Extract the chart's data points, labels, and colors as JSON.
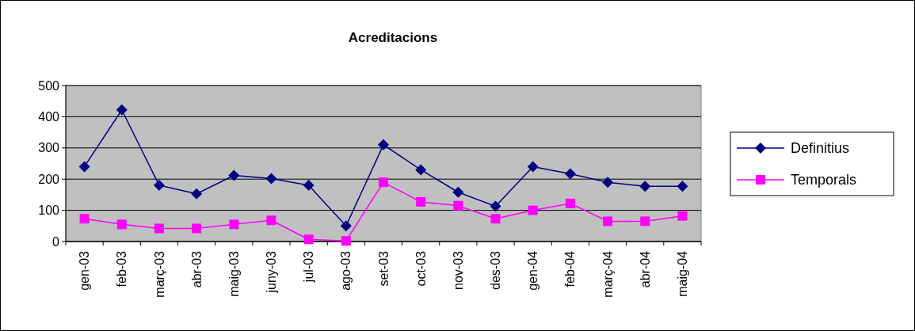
{
  "chart_data": {
    "type": "line",
    "title": "Acreditacions",
    "categories": [
      "gen-03",
      "feb-03",
      "març-03",
      "abr-03",
      "maig-03",
      "juny-03",
      "jul-03",
      "ago-03",
      "set-03",
      "oct-03",
      "nov-03",
      "des-03",
      "gen-04",
      "feb-04",
      "març-04",
      "abr-04",
      "maig-04"
    ],
    "series": [
      {
        "name": "Definitius",
        "color": "#000080",
        "marker": "diamond",
        "values": [
          240,
          422,
          180,
          153,
          212,
          202,
          180,
          50,
          310,
          230,
          158,
          113,
          240,
          217,
          190,
          177,
          177
        ]
      },
      {
        "name": "Temporals",
        "color": "#ff00ff",
        "marker": "square",
        "values": [
          73,
          55,
          42,
          42,
          55,
          68,
          7,
          2,
          190,
          127,
          115,
          73,
          100,
          122,
          65,
          65,
          82
        ]
      }
    ],
    "ylim": [
      0,
      500
    ],
    "yticks": [
      0,
      100,
      200,
      300,
      400,
      500
    ],
    "grid": "y",
    "legend": "right"
  }
}
